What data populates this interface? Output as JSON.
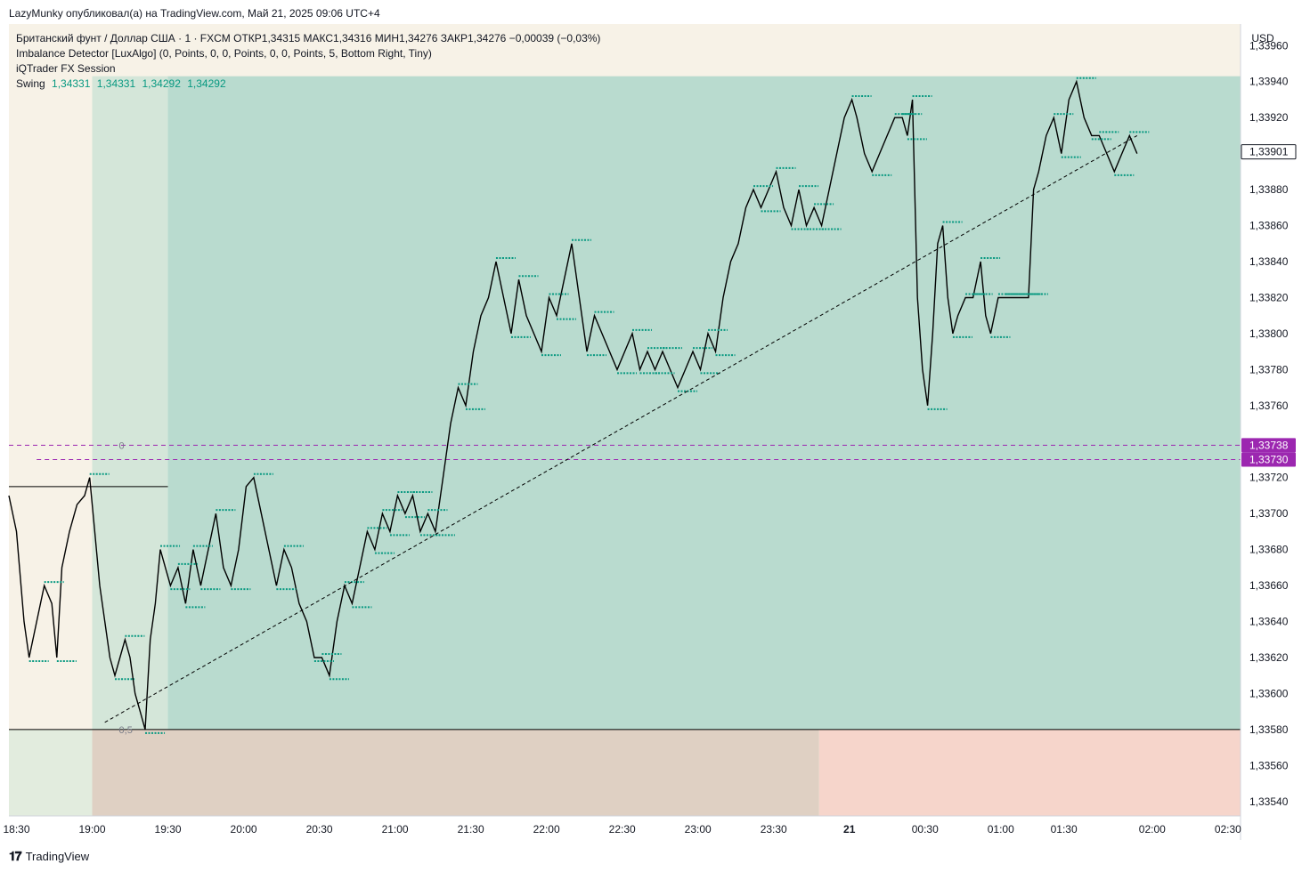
{
  "header": {
    "published_by": "LazyMunky опубликовал(а) на TradingView.com, Май 21, 2025 09:06 UTC+4"
  },
  "legend": {
    "symbol_line": "Британский фунт / Доллар США · 1 · FXCM  ОТКР1,34315  МАКС1,34316  МИН1,34276  ЗАКР1,34276  −0,00039 (−0,03%)",
    "indicator_1": "Imbalance Detector [LuxAlgo] (0, Points, 0, 0, Points, 0, 0, Points, 5, Bottom Right, Tiny)",
    "indicator_2": "iQTrader FX Session",
    "swing_label": "Swing",
    "swing_values": [
      "1,34331",
      "1,34331",
      "1,34292",
      "1,34292"
    ]
  },
  "footer": {
    "brand": "TradingView",
    "logo_icon": "tradingview-logo-icon"
  },
  "colors": {
    "session_green": "#b9dbcf",
    "session_left": "#d4e6d9",
    "pre_session": "#f7f2e7",
    "lower_zone": "#dfd0c3",
    "lower_zone_right": "#f6d5cb",
    "teal": "#089981",
    "purple": "#9c27b0",
    "candle": "#000000"
  },
  "chart_data": {
    "type": "line",
    "title": "",
    "xlabel": "",
    "ylabel": "",
    "currency": "USD",
    "y_ticks": [
      1.3396,
      1.3394,
      1.3392,
      1.3388,
      1.3386,
      1.3384,
      1.3382,
      1.338,
      1.3378,
      1.3376,
      1.3372,
      1.337,
      1.3368,
      1.3366,
      1.3364,
      1.3362,
      1.336,
      1.3358,
      1.3356,
      1.3354
    ],
    "y_tick_labels": [
      "1,33960",
      "1,33940",
      "1,33920",
      "1,33880",
      "1,33860",
      "1,33840",
      "1,33820",
      "1,33800",
      "1,33780",
      "1,33760",
      "1,33720",
      "1,33700",
      "1,33680",
      "1,33660",
      "1,33640",
      "1,33620",
      "1,33600",
      "1,33580",
      "1,33560",
      "1,33540"
    ],
    "ylim": [
      1.33532,
      1.33972
    ],
    "x_tick_labels": [
      "18:30",
      "19:00",
      "19:30",
      "20:00",
      "20:30",
      "21:00",
      "21:30",
      "22:00",
      "22:30",
      "23:00",
      "23:30",
      "21",
      "00:30",
      "01:00",
      "01:30",
      "02:00",
      "02:30"
    ],
    "x_tick_minutes": [
      -30,
      0,
      30,
      60,
      90,
      120,
      150,
      180,
      210,
      240,
      270,
      300,
      330,
      360,
      385,
      420,
      450
    ],
    "bold_tick": "21",
    "xlim_minutes": [
      -33,
      455
    ],
    "series": [
      {
        "price_points": [
          [
            -33,
            1.3371
          ],
          [
            -30,
            1.3369
          ],
          [
            -27,
            1.3364
          ],
          [
            -25,
            1.3362
          ],
          [
            -22,
            1.3364
          ],
          [
            -19,
            1.3366
          ],
          [
            -16,
            1.3365
          ],
          [
            -14,
            1.3362
          ],
          [
            -12,
            1.3367
          ],
          [
            -9,
            1.3369
          ],
          [
            -6,
            1.33705
          ],
          [
            -3,
            1.3371
          ],
          [
            -1,
            1.3372
          ],
          [
            1,
            1.3369
          ],
          [
            3,
            1.3366
          ],
          [
            5,
            1.3364
          ],
          [
            7,
            1.3362
          ],
          [
            9,
            1.3361
          ],
          [
            11,
            1.3362
          ],
          [
            13,
            1.3363
          ],
          [
            15,
            1.3362
          ],
          [
            17,
            1.336
          ],
          [
            19,
            1.3359
          ],
          [
            21,
            1.3358
          ],
          [
            23,
            1.3363
          ],
          [
            25,
            1.3365
          ],
          [
            27,
            1.3368
          ],
          [
            29,
            1.3367
          ],
          [
            31,
            1.3366
          ],
          [
            34,
            1.3367
          ],
          [
            37,
            1.3365
          ],
          [
            40,
            1.3368
          ],
          [
            43,
            1.3366
          ],
          [
            46,
            1.3368
          ],
          [
            49,
            1.337
          ],
          [
            52,
            1.3367
          ],
          [
            55,
            1.3366
          ],
          [
            58,
            1.3368
          ],
          [
            61,
            1.33715
          ],
          [
            64,
            1.3372
          ],
          [
            67,
            1.337
          ],
          [
            70,
            1.3368
          ],
          [
            73,
            1.3366
          ],
          [
            76,
            1.3368
          ],
          [
            79,
            1.3367
          ],
          [
            82,
            1.3365
          ],
          [
            85,
            1.3364
          ],
          [
            88,
            1.3362
          ],
          [
            91,
            1.3362
          ],
          [
            94,
            1.3361
          ],
          [
            97,
            1.3364
          ],
          [
            100,
            1.3366
          ],
          [
            103,
            1.3365
          ],
          [
            106,
            1.3367
          ],
          [
            109,
            1.3369
          ],
          [
            112,
            1.3368
          ],
          [
            115,
            1.337
          ],
          [
            118,
            1.3369
          ],
          [
            121,
            1.3371
          ],
          [
            124,
            1.337
          ],
          [
            127,
            1.3371
          ],
          [
            130,
            1.3369
          ],
          [
            133,
            1.337
          ],
          [
            136,
            1.3369
          ],
          [
            139,
            1.3372
          ],
          [
            142,
            1.3375
          ],
          [
            145,
            1.3377
          ],
          [
            148,
            1.3376
          ],
          [
            151,
            1.3379
          ],
          [
            154,
            1.3381
          ],
          [
            157,
            1.3382
          ],
          [
            160,
            1.3384
          ],
          [
            163,
            1.3382
          ],
          [
            166,
            1.338
          ],
          [
            169,
            1.3383
          ],
          [
            172,
            1.3381
          ],
          [
            175,
            1.338
          ],
          [
            178,
            1.3379
          ],
          [
            181,
            1.3382
          ],
          [
            184,
            1.3381
          ],
          [
            187,
            1.3383
          ],
          [
            190,
            1.3385
          ],
          [
            193,
            1.3382
          ],
          [
            196,
            1.3379
          ],
          [
            199,
            1.3381
          ],
          [
            202,
            1.338
          ],
          [
            205,
            1.3379
          ],
          [
            208,
            1.3378
          ],
          [
            211,
            1.3379
          ],
          [
            214,
            1.338
          ],
          [
            217,
            1.3378
          ],
          [
            220,
            1.3379
          ],
          [
            223,
            1.3378
          ],
          [
            226,
            1.3379
          ],
          [
            229,
            1.3378
          ],
          [
            232,
            1.3377
          ],
          [
            235,
            1.3378
          ],
          [
            238,
            1.3379
          ],
          [
            241,
            1.3378
          ],
          [
            244,
            1.338
          ],
          [
            247,
            1.3379
          ],
          [
            250,
            1.3382
          ],
          [
            253,
            1.3384
          ],
          [
            256,
            1.3385
          ],
          [
            259,
            1.3387
          ],
          [
            262,
            1.3388
          ],
          [
            265,
            1.3387
          ],
          [
            268,
            1.3388
          ],
          [
            271,
            1.3389
          ],
          [
            274,
            1.3387
          ],
          [
            277,
            1.3386
          ],
          [
            280,
            1.3388
          ],
          [
            283,
            1.3386
          ],
          [
            286,
            1.3387
          ],
          [
            289,
            1.3386
          ],
          [
            292,
            1.3388
          ],
          [
            295,
            1.339
          ],
          [
            298,
            1.3392
          ],
          [
            301,
            1.3393
          ],
          [
            303,
            1.3392
          ],
          [
            306,
            1.339
          ],
          [
            309,
            1.3389
          ],
          [
            312,
            1.339
          ],
          [
            315,
            1.3391
          ],
          [
            318,
            1.3392
          ],
          [
            321,
            1.3392
          ],
          [
            323,
            1.3391
          ],
          [
            325,
            1.3393
          ],
          [
            327,
            1.3382
          ],
          [
            329,
            1.3378
          ],
          [
            331,
            1.3376
          ],
          [
            333,
            1.338
          ],
          [
            335,
            1.3385
          ],
          [
            337,
            1.3386
          ],
          [
            339,
            1.3382
          ],
          [
            341,
            1.338
          ],
          [
            343,
            1.3381
          ],
          [
            346,
            1.3382
          ],
          [
            349,
            1.3382
          ],
          [
            352,
            1.3384
          ],
          [
            354,
            1.3381
          ],
          [
            356,
            1.338
          ],
          [
            359,
            1.3382
          ],
          [
            362,
            1.3382
          ],
          [
            365,
            1.3382
          ],
          [
            368,
            1.3382
          ],
          [
            371,
            1.3382
          ],
          [
            373,
            1.3388
          ],
          [
            375,
            1.3389
          ],
          [
            378,
            1.3391
          ],
          [
            381,
            1.3392
          ],
          [
            384,
            1.339
          ],
          [
            387,
            1.3393
          ],
          [
            390,
            1.3394
          ],
          [
            393,
            1.3392
          ],
          [
            396,
            1.3391
          ],
          [
            399,
            1.3391
          ],
          [
            402,
            1.339
          ],
          [
            405,
            1.3389
          ],
          [
            408,
            1.339
          ],
          [
            411,
            1.3391
          ],
          [
            414,
            1.339
          ]
        ]
      }
    ],
    "annotations": {
      "current_price": "1,33901",
      "level_a_label": "1,33738",
      "level_b_label": "1,33730",
      "fib_zero_label": "0",
      "fib_half_label": "0,5",
      "fib_zero": 1.33738,
      "level_b": 1.3373,
      "fib_half": 1.3358,
      "session_top": 1.33943,
      "prior_high": 1.33715,
      "diagonal_from": [
        5,
        1.33584
      ],
      "diagonal_to": [
        414,
        1.3391
      ]
    }
  }
}
